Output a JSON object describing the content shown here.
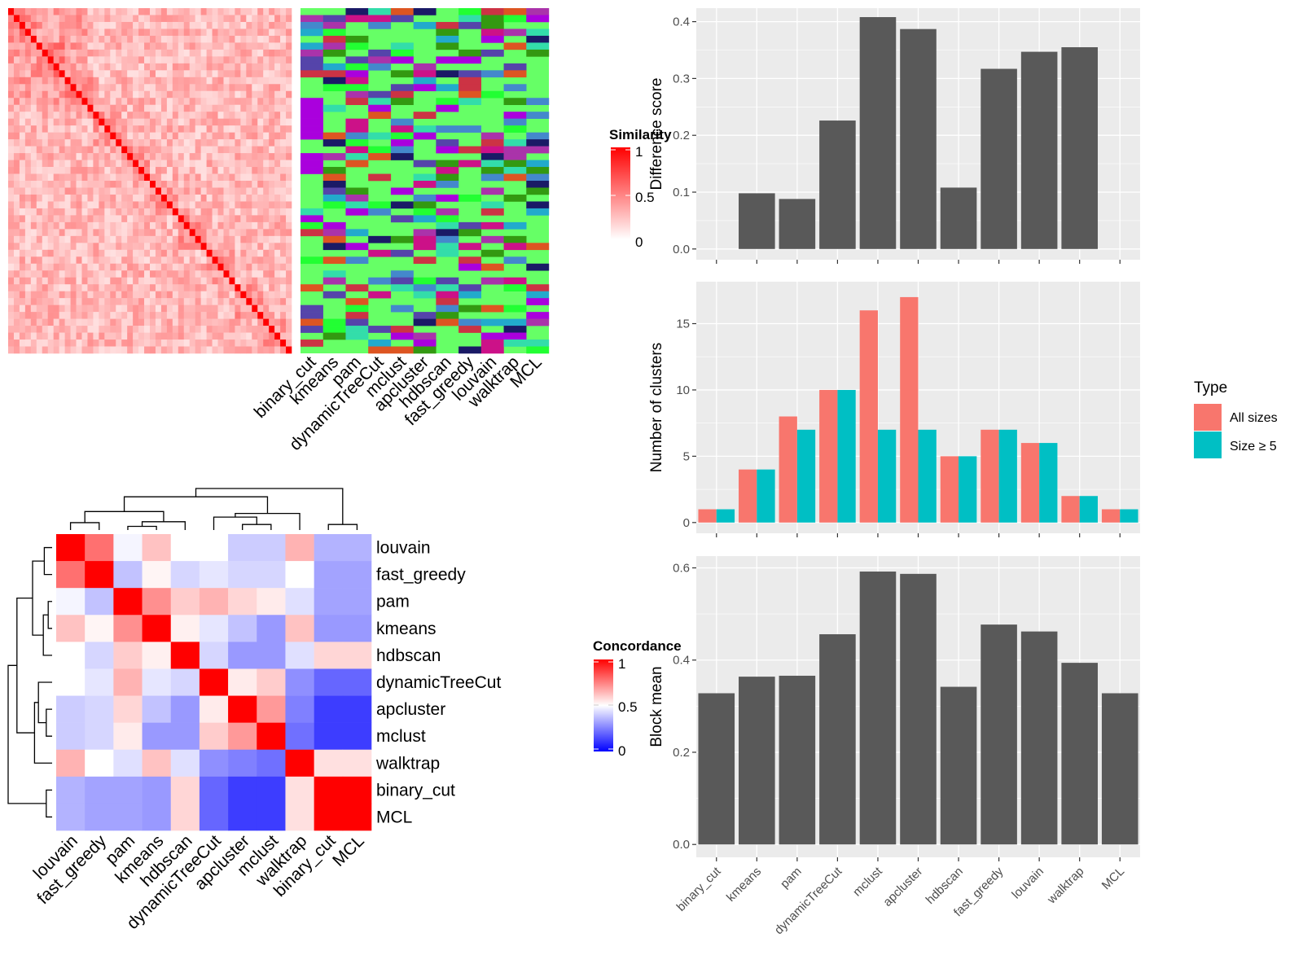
{
  "methods": [
    "binary_cut",
    "kmeans",
    "pam",
    "dynamicTreeCut",
    "mclust",
    "apcluster",
    "hdbscan",
    "fast_greedy",
    "louvain",
    "walktrap",
    "MCL"
  ],
  "similarity_legend": {
    "title": "Similarity",
    "ticks": [
      "1",
      "0.5",
      "0"
    ]
  },
  "concordance_legend": {
    "title": "Concordance",
    "ticks": [
      "1",
      "0.5",
      "0"
    ]
  },
  "type_legend": {
    "title": "Type",
    "entries": [
      {
        "label": "All sizes",
        "color": "#F8766D"
      },
      {
        "label": "Size ≥ 5",
        "color": "#00BFC4"
      }
    ]
  },
  "colors": {
    "bar": "#595959",
    "panel_bg": "#EBEBEB",
    "grid": "#FFFFFF",
    "high": "#FF0000",
    "mid": "#FFFFFF",
    "low": "#0000FF",
    "cluster_bg": "#66FF66"
  },
  "concordance": {
    "order": [
      "louvain",
      "fast_greedy",
      "pam",
      "kmeans",
      "hdbscan",
      "dynamicTreeCut",
      "apcluster",
      "mclust",
      "walktrap",
      "binary_cut",
      "MCL"
    ],
    "matrix": [
      [
        1.0,
        0.78,
        0.48,
        0.62,
        0.5,
        0.5,
        0.4,
        0.4,
        0.65,
        0.35,
        0.35
      ],
      [
        0.78,
        1.0,
        0.38,
        0.52,
        0.42,
        0.45,
        0.42,
        0.42,
        0.5,
        0.32,
        0.32
      ],
      [
        0.48,
        0.38,
        1.0,
        0.72,
        0.6,
        0.65,
        0.58,
        0.54,
        0.44,
        0.32,
        0.32
      ],
      [
        0.62,
        0.52,
        0.72,
        1.0,
        0.53,
        0.45,
        0.38,
        0.3,
        0.62,
        0.3,
        0.3
      ],
      [
        0.5,
        0.42,
        0.6,
        0.53,
        1.0,
        0.42,
        0.3,
        0.3,
        0.44,
        0.58,
        0.58
      ],
      [
        0.5,
        0.45,
        0.65,
        0.45,
        0.42,
        1.0,
        0.54,
        0.6,
        0.28,
        0.2,
        0.2
      ],
      [
        0.4,
        0.42,
        0.58,
        0.38,
        0.3,
        0.54,
        1.0,
        0.7,
        0.25,
        0.12,
        0.12
      ],
      [
        0.4,
        0.42,
        0.54,
        0.3,
        0.3,
        0.6,
        0.7,
        1.0,
        0.22,
        0.12,
        0.12
      ],
      [
        0.65,
        0.5,
        0.44,
        0.62,
        0.44,
        0.28,
        0.25,
        0.22,
        1.0,
        0.56,
        0.56
      ],
      [
        0.35,
        0.32,
        0.32,
        0.3,
        0.58,
        0.2,
        0.12,
        0.12,
        0.56,
        1.0,
        1.0
      ],
      [
        0.35,
        0.32,
        0.32,
        0.3,
        0.58,
        0.2,
        0.12,
        0.12,
        0.56,
        1.0,
        1.0
      ]
    ]
  },
  "chart_data": [
    {
      "type": "bar",
      "categories": [
        "binary_cut",
        "kmeans",
        "pam",
        "dynamicTreeCut",
        "mclust",
        "apcluster",
        "hdbscan",
        "fast_greedy",
        "louvain",
        "walktrap",
        "MCL"
      ],
      "values": [
        0.0,
        0.098,
        0.088,
        0.226,
        0.408,
        0.387,
        0.108,
        0.317,
        0.347,
        0.355,
        0.0
      ],
      "xlabel": "",
      "ylabel": "Difference score",
      "ylim": [
        0,
        0.42
      ],
      "yticks": [
        0.0,
        0.1,
        0.2,
        0.3,
        0.4
      ],
      "ytick_labels": [
        "0.0",
        "0.1",
        "0.2",
        "0.3",
        "0.4"
      ],
      "grid": true
    },
    {
      "type": "bar",
      "categories": [
        "binary_cut",
        "kmeans",
        "pam",
        "dynamicTreeCut",
        "mclust",
        "apcluster",
        "hdbscan",
        "fast_greedy",
        "louvain",
        "walktrap",
        "MCL"
      ],
      "series": [
        {
          "name": "All sizes",
          "values": [
            1,
            4,
            8,
            10,
            16,
            17,
            5,
            7,
            6,
            2,
            1
          ]
        },
        {
          "name": "Size ≥ 5",
          "values": [
            1,
            4,
            7,
            10,
            7,
            7,
            5,
            7,
            6,
            2,
            1
          ]
        }
      ],
      "xlabel": "",
      "ylabel": "Number of clusters",
      "ylim": [
        0,
        18
      ],
      "yticks": [
        0,
        5,
        10,
        15
      ],
      "ytick_labels": [
        "0",
        "5",
        "10",
        "15"
      ],
      "legend": "right",
      "grid": true
    },
    {
      "type": "bar",
      "categories": [
        "binary_cut",
        "kmeans",
        "pam",
        "dynamicTreeCut",
        "mclust",
        "apcluster",
        "hdbscan",
        "fast_greedy",
        "louvain",
        "walktrap",
        "MCL"
      ],
      "values": [
        0.328,
        0.364,
        0.366,
        0.456,
        0.592,
        0.587,
        0.342,
        0.477,
        0.462,
        0.394,
        0.328
      ],
      "xlabel": "",
      "ylabel": "Block mean",
      "ylim": [
        0,
        0.62
      ],
      "yticks": [
        0.0,
        0.2,
        0.4,
        0.6
      ],
      "ytick_labels": [
        "0.0",
        "0.2",
        "0.4",
        "0.6"
      ],
      "grid": true
    }
  ]
}
